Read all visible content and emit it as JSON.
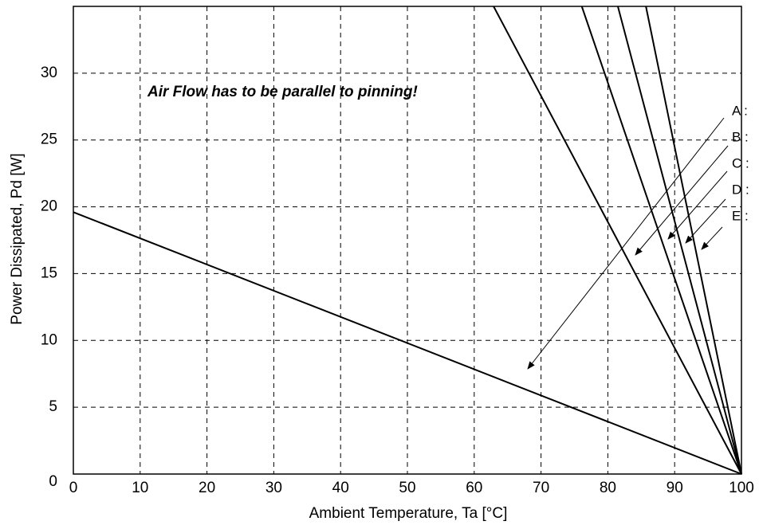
{
  "chart_data": {
    "type": "line",
    "annotation": "Air Flow has to be parallel to pinning!",
    "x_label": "Ambient Temperature, Ta [°C]",
    "y_label": "Power Dissipated, Pd [W]",
    "series": [
      {
        "name": "A :",
        "color": "#000000",
        "x": [
          0,
          100
        ],
        "values": [
          19.6,
          0
        ]
      },
      {
        "name": "B :",
        "color": "#000000",
        "x": [
          62.9,
          100
        ],
        "values": [
          35,
          0
        ]
      },
      {
        "name": "C :",
        "color": "#000000",
        "x": [
          76.1,
          100
        ],
        "values": [
          35,
          0
        ]
      },
      {
        "name": "D :",
        "color": "#000000",
        "x": [
          81.5,
          100
        ],
        "values": [
          35,
          0
        ]
      },
      {
        "name": "E :",
        "color": "#000000",
        "x": [
          85.7,
          100
        ],
        "values": [
          35,
          0
        ]
      }
    ],
    "xlim": [
      0,
      100
    ],
    "xticks": [
      0,
      10,
      20,
      30,
      40,
      50,
      60,
      70,
      80,
      90,
      100
    ],
    "ylim": [
      0,
      35
    ],
    "yticks": [
      0,
      5,
      10,
      15,
      20,
      25,
      30
    ],
    "grid": true
  }
}
